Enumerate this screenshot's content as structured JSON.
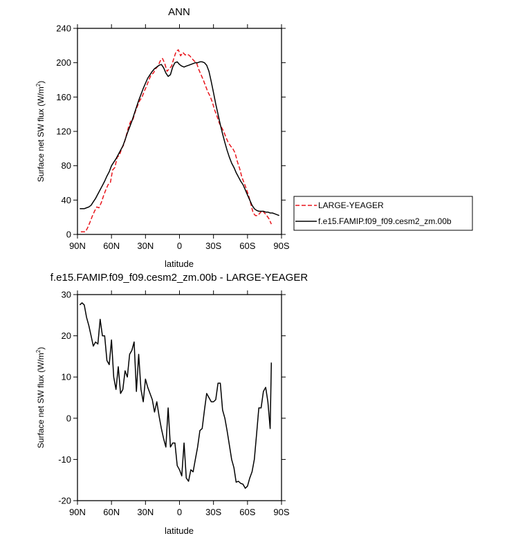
{
  "chart_data": [
    {
      "type": "line",
      "title": "ANN",
      "xlabel": "latitude",
      "ylabel": "Surface net SW flux (W/m",
      "ylabel_sup": "2",
      "ylabel_end": ")",
      "xlim": [
        90,
        -90
      ],
      "ylim": [
        0,
        240
      ],
      "x_ticks": [
        90,
        60,
        30,
        0,
        -30,
        -60,
        -90
      ],
      "x_tick_labels": [
        "90N",
        "60N",
        "30N",
        "0",
        "30S",
        "60S",
        "90S"
      ],
      "y_ticks": [
        0,
        40,
        80,
        120,
        160,
        200,
        240
      ],
      "y_tick_labels": [
        "0",
        "40",
        "80",
        "120",
        "160",
        "200",
        "240"
      ],
      "legend_position": "right",
      "series": [
        {
          "name": "LARGE-YEAGER",
          "color": "#e8141b",
          "dash": "dashed",
          "x": [
            87,
            85,
            83,
            81,
            79,
            77,
            75,
            73,
            71,
            69,
            67,
            65,
            63,
            61,
            59,
            57,
            55,
            53,
            51,
            49,
            47,
            45,
            43,
            41,
            39,
            37,
            35,
            33,
            31,
            29,
            27,
            25,
            23,
            21,
            19,
            17,
            15,
            13,
            11,
            9,
            7,
            5,
            3,
            1,
            -1,
            -3,
            -5,
            -7,
            -9,
            -11,
            -13,
            -15,
            -17,
            -19,
            -21,
            -23,
            -25,
            -27,
            -29,
            -31,
            -33,
            -35,
            -37,
            -39,
            -41,
            -43,
            -45,
            -47,
            -49,
            -51,
            -53,
            -55,
            -57,
            -59,
            -61,
            -63,
            -65,
            -67,
            -69,
            -71,
            -73,
            -75,
            -77,
            -79,
            -81
          ],
          "y": [
            3,
            3,
            3,
            8,
            14,
            21,
            27,
            32,
            31,
            37,
            45,
            52,
            58,
            60,
            75,
            78,
            90,
            92,
            100,
            105,
            115,
            125,
            132,
            134,
            143,
            150,
            156,
            160,
            167,
            173,
            180,
            186,
            188,
            193,
            196,
            202,
            205,
            199,
            190,
            193,
            196,
            205,
            213,
            215,
            208,
            212,
            209,
            210,
            208,
            205,
            202,
            200,
            192,
            186,
            180,
            173,
            166,
            161,
            154,
            145,
            138,
            130,
            125,
            120,
            113,
            107,
            103,
            100,
            95,
            85,
            77,
            67,
            60,
            53,
            45,
            35,
            25,
            22,
            22,
            25,
            28,
            25,
            22,
            18,
            12
          ]
        },
        {
          "name": "f.e15.FAMIP.f09_f09.cesm2_zm.00b",
          "color": "#000000",
          "dash": "solid",
          "x": [
            88,
            86,
            84,
            82,
            80,
            78,
            76,
            74,
            72,
            70,
            68,
            66,
            64,
            62,
            60,
            58,
            56,
            54,
            52,
            50,
            48,
            46,
            44,
            42,
            40,
            38,
            36,
            34,
            32,
            30,
            28,
            26,
            24,
            22,
            20,
            18,
            16,
            14,
            12,
            10,
            8,
            6,
            4,
            2,
            0,
            -2,
            -4,
            -6,
            -8,
            -10,
            -12,
            -14,
            -16,
            -18,
            -20,
            -22,
            -24,
            -26,
            -28,
            -30,
            -32,
            -34,
            -36,
            -38,
            -40,
            -42,
            -44,
            -46,
            -48,
            -50,
            -52,
            -54,
            -56,
            -58,
            -60,
            -62,
            -64,
            -66,
            -68,
            -70,
            -72,
            -74,
            -76,
            -78,
            -80,
            -82,
            -84,
            -86,
            -88
          ],
          "y": [
            30,
            30,
            30,
            31,
            32,
            34,
            38,
            42,
            47,
            52,
            57,
            62,
            68,
            73,
            80,
            84,
            88,
            93,
            98,
            103,
            110,
            118,
            125,
            132,
            140,
            148,
            156,
            163,
            170,
            176,
            182,
            186,
            190,
            193,
            195,
            197,
            198,
            194,
            188,
            184,
            186,
            195,
            200,
            201,
            198,
            196,
            195,
            196,
            197,
            198,
            199,
            200,
            200,
            201,
            201,
            200,
            197,
            190,
            178,
            165,
            152,
            140,
            128,
            117,
            107,
            98,
            90,
            83,
            78,
            72,
            67,
            62,
            58,
            52,
            46,
            40,
            34,
            30,
            28,
            27,
            27,
            27,
            26,
            26,
            25,
            25,
            24,
            23,
            22
          ]
        }
      ]
    },
    {
      "type": "line",
      "title": "f.e15.FAMIP.f09_f09.cesm2_zm.00b - LARGE-YEAGER",
      "xlabel": "latitude",
      "ylabel": "Surface net SW flux (W/m",
      "ylabel_sup": "2",
      "ylabel_end": ")",
      "xlim": [
        90,
        -90
      ],
      "ylim": [
        -20,
        30
      ],
      "x_ticks": [
        90,
        60,
        30,
        0,
        -30,
        -60,
        -90
      ],
      "x_tick_labels": [
        "90N",
        "60N",
        "30N",
        "0",
        "30S",
        "60S",
        "90S"
      ],
      "y_ticks": [
        -20,
        -10,
        0,
        10,
        20,
        30
      ],
      "y_tick_labels": [
        "-20",
        "-10",
        "0",
        "10",
        "20",
        "30"
      ],
      "series": [
        {
          "color": "#000000",
          "dash": "solid",
          "x": [
            88,
            86,
            84,
            82,
            80,
            78,
            76,
            74,
            72,
            70,
            68,
            66,
            64,
            62,
            60,
            58,
            56,
            54,
            52,
            50,
            48,
            46,
            44,
            42,
            40,
            38,
            36,
            34,
            32,
            30,
            28,
            26,
            24,
            22,
            20,
            18,
            16,
            14,
            12,
            10,
            8,
            6,
            4,
            2,
            0,
            -2,
            -4,
            -6,
            -8,
            -10,
            -12,
            -14,
            -16,
            -18,
            -20,
            -22,
            -24,
            -26,
            -28,
            -30,
            -32,
            -34,
            -36,
            -38,
            -40,
            -42,
            -44,
            -46,
            -48,
            -50,
            -52,
            -54,
            -56,
            -58,
            -60,
            -62,
            -64,
            -66,
            -68,
            -70,
            -72,
            -74,
            -76,
            -78,
            -80,
            -81
          ],
          "y": [
            27.5,
            28,
            27.5,
            24.5,
            22.5,
            20,
            17.5,
            18.5,
            18,
            24,
            20,
            20,
            14,
            13,
            19,
            10,
            7,
            12.5,
            6,
            7,
            11.5,
            10,
            15.5,
            16.5,
            18.5,
            6.5,
            15.5,
            7,
            4,
            9.5,
            7.5,
            6,
            4.5,
            1.5,
            4,
            0.5,
            -2.5,
            -5,
            -7,
            2.5,
            -7,
            -6,
            -6,
            -11.5,
            -12.5,
            -14,
            -6,
            -14.5,
            -15.3,
            -12.5,
            -13,
            -10,
            -7,
            -3,
            -2.5,
            2,
            6,
            5,
            4,
            4,
            4.5,
            8.5,
            8.5,
            2,
            0,
            -3,
            -6.5,
            -10,
            -12,
            -15.5,
            -15.3,
            -15.8,
            -16,
            -17,
            -16.5,
            -14.5,
            -13,
            -10,
            -4,
            2.5,
            2.5,
            6.5,
            7.5,
            4,
            -2.5,
            13.5
          ]
        }
      ]
    }
  ]
}
